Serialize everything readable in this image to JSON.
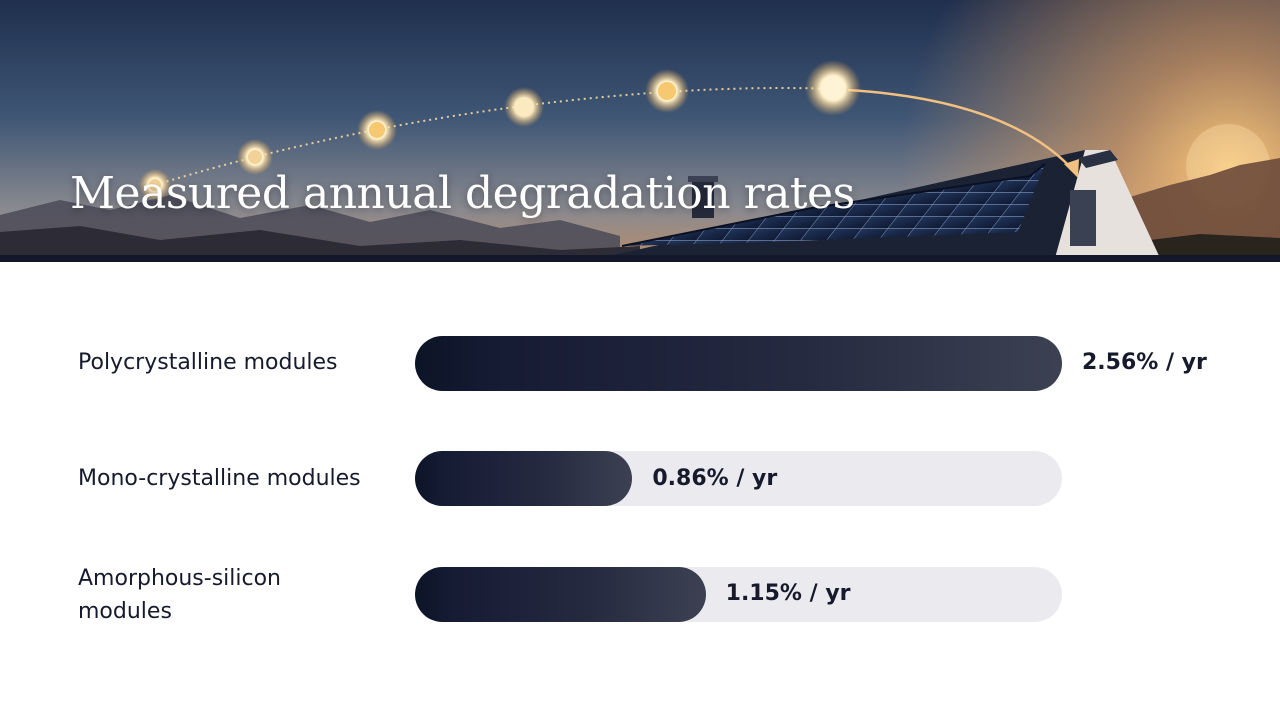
{
  "header": {
    "title": "Measured annual degradation rates"
  },
  "colors": {
    "bar_fill_start": "#0c1427",
    "bar_fill_end": "#3c4152",
    "track": "#ebebef",
    "text": "#161a2c"
  },
  "chart_data": {
    "type": "bar",
    "orientation": "horizontal",
    "categories": [
      "Polycrystalline modules",
      "Mono-crystalline modules",
      "Amorphous-silicon modules"
    ],
    "values": [
      2.56,
      0.86,
      1.15
    ],
    "value_labels": [
      "2.56% / yr",
      "0.86% / yr",
      "1.15% / yr"
    ],
    "xlim": [
      0,
      2.56
    ],
    "grid": false,
    "axes_shown": false
  }
}
